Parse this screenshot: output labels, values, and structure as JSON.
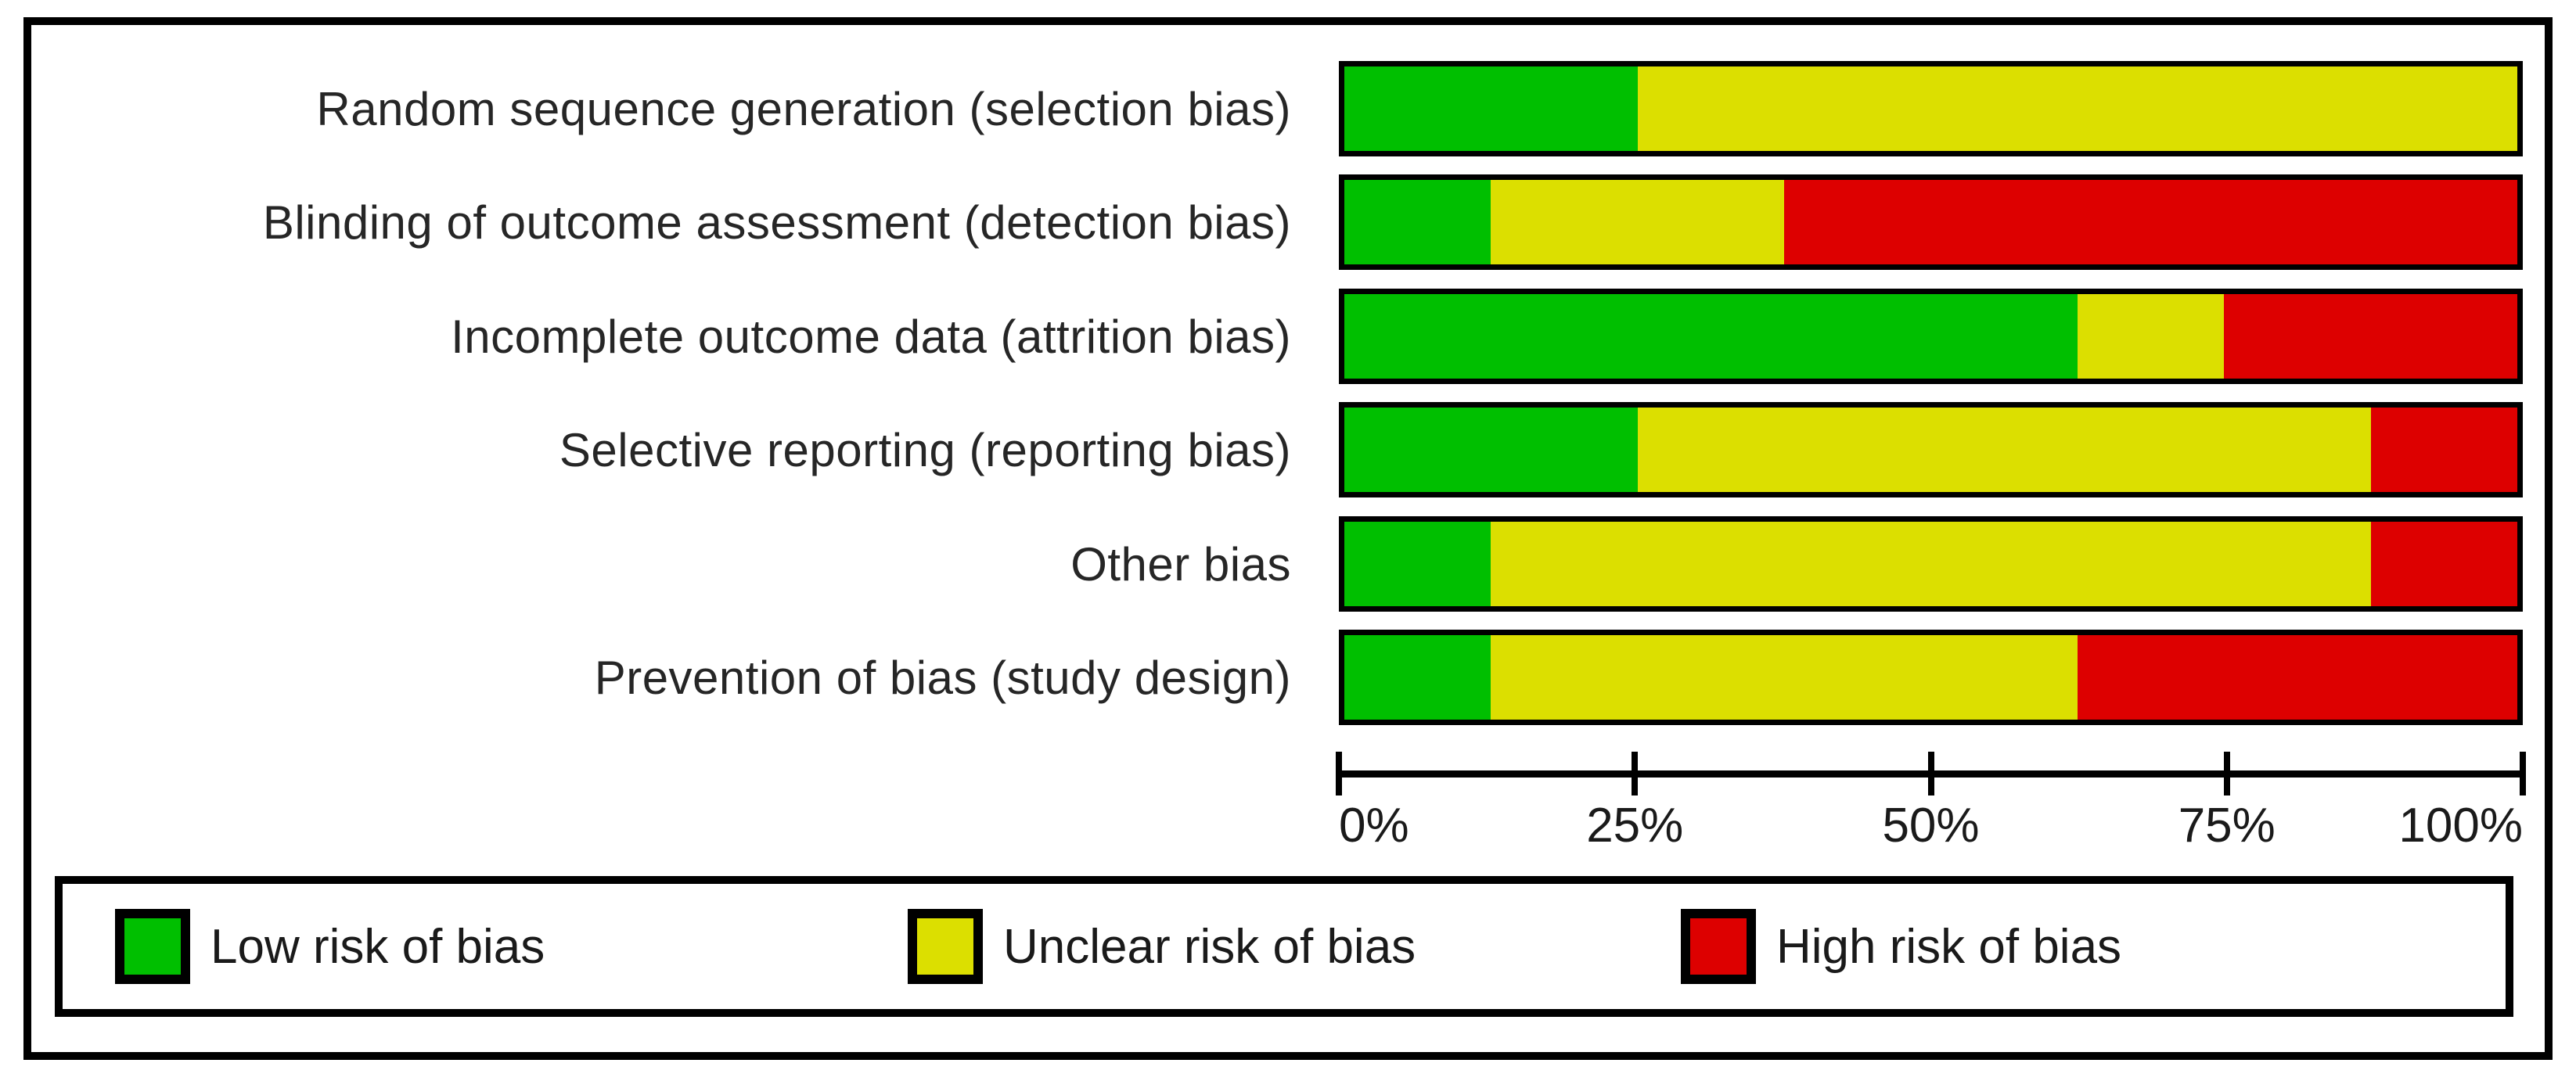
{
  "chart_data": {
    "type": "bar",
    "variant": "horizontal-stacked",
    "title": "",
    "categories": [
      "Random sequence generation (selection bias)",
      "Blinding of outcome assessment (detection bias)",
      "Incomplete outcome data (attrition bias)",
      "Selective reporting (reporting bias)",
      "Other bias",
      "Prevention of bias (study design)"
    ],
    "series": [
      {
        "name": "Low risk of bias",
        "color": "#00bf00",
        "values": [
          25,
          12.5,
          62.5,
          25,
          12.5,
          12.5
        ]
      },
      {
        "name": "Unclear risk of bias",
        "color": "#dcdf00",
        "values": [
          75,
          25,
          12.5,
          62.5,
          75,
          50
        ]
      },
      {
        "name": "High risk of bias",
        "color": "#dd0000",
        "values": [
          0,
          62.5,
          25,
          12.5,
          12.5,
          37.5
        ]
      }
    ],
    "xlabel": "",
    "ylabel": "",
    "xlim": [
      0,
      100
    ],
    "x_tick_values": [
      0,
      25,
      50,
      75,
      100
    ],
    "x_tick_labels": [
      "0%",
      "25%",
      "50%",
      "75%",
      "100%"
    ],
    "grid": false,
    "legend_position": "bottom"
  },
  "colors": {
    "low": "#00bf00",
    "unclear": "#dcdf00",
    "high": "#dd0000",
    "border": "#000000",
    "text": "#1a1a1a"
  }
}
